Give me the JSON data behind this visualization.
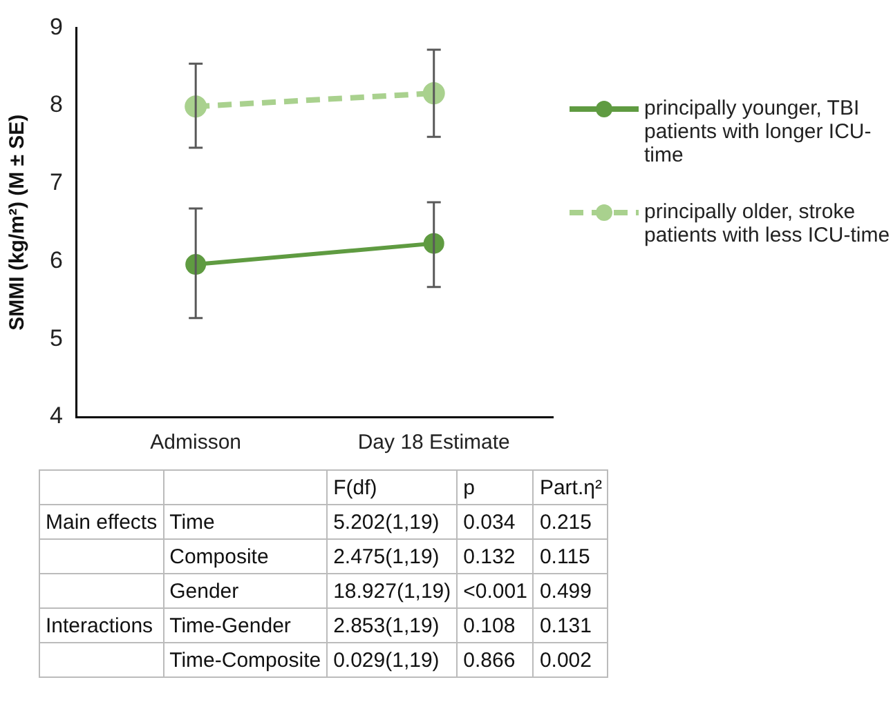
{
  "chart_data": {
    "type": "line",
    "ylabel": "SMMI (kg/m²) (M ± SE)",
    "categories": [
      "Admisson",
      "Day 18 Estimate"
    ],
    "series": [
      {
        "name": "principally younger, TBI patients with longer ICU-time",
        "color": "#5f9b41",
        "values": [
          5.96,
          6.23
        ],
        "errors": [
          [
            5.27,
            6.68
          ],
          [
            5.67,
            6.76
          ]
        ],
        "line_style": "solid"
      },
      {
        "name": "principally older, stroke patients with less ICU-time",
        "color": "#a9d18e",
        "values": [
          7.99,
          8.16
        ],
        "errors": [
          [
            7.46,
            8.54
          ],
          [
            7.6,
            8.72
          ]
        ],
        "line_style": "dashed"
      }
    ],
    "ylim": [
      4,
      9
    ],
    "yticks": [
      4,
      5,
      6,
      7,
      8,
      9
    ],
    "grid": false,
    "legend": "right",
    "marker": "circle",
    "annotations": [
      "F(df)",
      "p",
      "Part.η²",
      "Main effects",
      "Time",
      "5.202(1,19)",
      "0.034",
      "0.215",
      "Composite",
      "2.475(1,19)",
      "0.132",
      "0.115",
      "Gender",
      "18.927(1,19)",
      "<0.001",
      "0.499",
      "Interactions",
      "Time-Gender",
      "2.853(1,19)",
      "0.108",
      "0.131",
      "Time-Composite",
      "0.029(1,19)",
      "0.866",
      "0.002"
    ]
  }
}
